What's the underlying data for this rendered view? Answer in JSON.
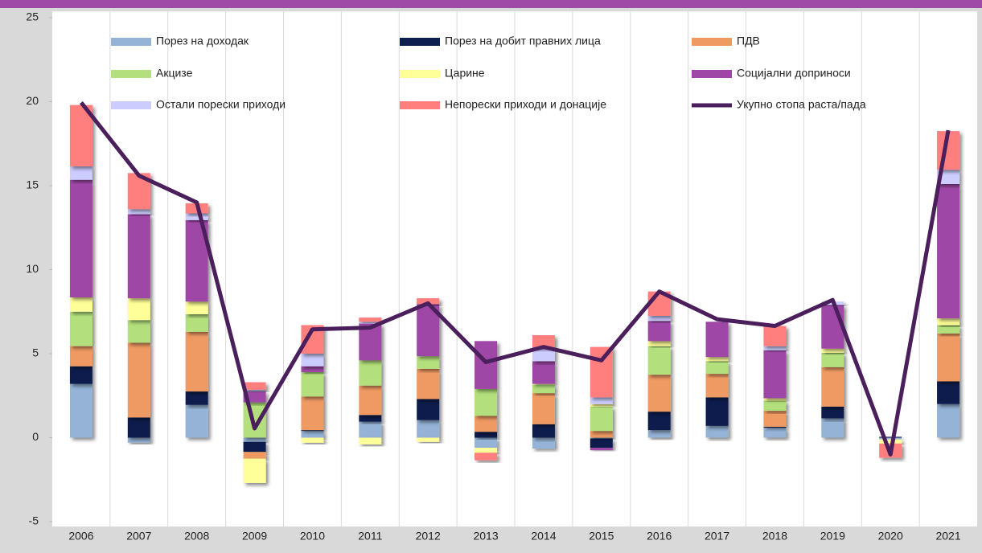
{
  "chart_data": {
    "type": "bar",
    "stacked": true,
    "categories": [
      "2006",
      "2007",
      "2008",
      "2009",
      "2010",
      "2011",
      "2012",
      "2013",
      "2014",
      "2015",
      "2016",
      "2017",
      "2018",
      "2019",
      "2020",
      "2021"
    ],
    "series": [
      {
        "name": "Порез на доходак",
        "color": "#95b3d7",
        "values": [
          3.2,
          -0.3,
          1.95,
          -0.25,
          0.4,
          0.95,
          1.05,
          -0.6,
          -0.65,
          -0.05,
          0.45,
          0.7,
          0.6,
          1.15,
          -0.1,
          2.0
        ]
      },
      {
        "name": "Порез на добит правних лица",
        "color": "#0c1f4e",
        "values": [
          1.05,
          1.2,
          0.8,
          -0.6,
          0.05,
          0.4,
          1.25,
          0.35,
          0.8,
          -0.55,
          1.1,
          1.7,
          0.05,
          0.7,
          0.05,
          1.35
        ]
      },
      {
        "name": "ПДВ",
        "color": "#ef9a62",
        "values": [
          1.2,
          4.45,
          3.55,
          -0.4,
          2.0,
          1.75,
          1.8,
          0.95,
          1.85,
          0.4,
          2.2,
          1.4,
          0.95,
          2.35,
          0,
          2.85
        ]
      },
      {
        "name": "Акцизе",
        "color": "#b3e07c",
        "values": [
          2.05,
          1.35,
          1.05,
          2.1,
          1.45,
          1.5,
          0.75,
          1.6,
          0.5,
          1.45,
          1.7,
          0.75,
          0.6,
          0.85,
          0,
          0.5
        ]
      },
      {
        "name": "Царине",
        "color": "#ffff99",
        "values": [
          0.85,
          1.3,
          0.75,
          -1.45,
          -0.3,
          -0.4,
          -0.25,
          -0.3,
          0.05,
          0.15,
          0.3,
          0.25,
          0.15,
          0.25,
          -0.25,
          0.4
        ]
      },
      {
        "name": "Социјални доприноси",
        "color": "#9e47a6",
        "values": [
          7.0,
          5.0,
          4.85,
          0.65,
          0.35,
          2.2,
          3.1,
          2.85,
          1.35,
          -0.15,
          1.2,
          2.1,
          2.85,
          2.6,
          0,
          8.0
        ]
      },
      {
        "name": "Остали порески приходи",
        "color": "#ccccff",
        "values": [
          0.8,
          0.3,
          0.4,
          0.1,
          0.75,
          0.1,
          0,
          0,
          0.8,
          0.4,
          0.3,
          0,
          0.25,
          0.2,
          0,
          0.85
        ]
      },
      {
        "name": "Непорески приходи и донације",
        "color": "#ff7f7f",
        "values": [
          3.65,
          2.15,
          0.6,
          0.45,
          1.7,
          0.25,
          0.35,
          -0.45,
          0.75,
          3.0,
          1.45,
          0,
          1.2,
          0,
          -0.85,
          2.3
        ]
      }
    ],
    "line": {
      "name": "Укупно стопа раста/пада",
      "color": "#4a1f5c",
      "values": [
        19.95,
        15.6,
        14.0,
        0.55,
        6.45,
        6.55,
        8.0,
        4.5,
        5.4,
        4.6,
        8.7,
        7.05,
        6.65,
        8.2,
        -1.0,
        18.3
      ]
    },
    "ylim": [
      -5,
      25
    ],
    "yticks": [
      -5,
      0,
      5,
      10,
      15,
      20,
      25
    ],
    "grid": true
  }
}
